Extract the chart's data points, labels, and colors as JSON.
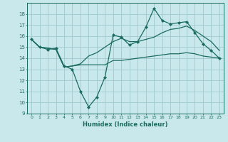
{
  "title": "",
  "xlabel": "Humidex (Indice chaleur)",
  "ylabel": "",
  "bg_color": "#c8e8ec",
  "line_color": "#1a6b5e",
  "grid_color": "#a0c8cc",
  "xlim": [
    -0.5,
    23.5
  ],
  "ylim": [
    9,
    19
  ],
  "yticks": [
    9,
    10,
    11,
    12,
    13,
    14,
    15,
    16,
    17,
    18
  ],
  "xticks": [
    0,
    1,
    2,
    3,
    4,
    5,
    6,
    7,
    8,
    9,
    10,
    11,
    12,
    13,
    14,
    15,
    16,
    17,
    18,
    19,
    20,
    21,
    22,
    23
  ],
  "line1_x": [
    0,
    1,
    2,
    3,
    4,
    5,
    6,
    7,
    8,
    9,
    10,
    11,
    12,
    13,
    14,
    15,
    16,
    17,
    18,
    19,
    20,
    21,
    22,
    23
  ],
  "line1_y": [
    15.7,
    15.0,
    14.8,
    14.9,
    13.3,
    13.0,
    11.0,
    9.6,
    10.5,
    12.3,
    16.1,
    15.9,
    15.2,
    15.5,
    16.8,
    18.5,
    17.4,
    17.1,
    17.2,
    17.3,
    16.3,
    15.3,
    14.7,
    14.0
  ],
  "line2_x": [
    0,
    1,
    2,
    3,
    4,
    5,
    6,
    7,
    8,
    9,
    10,
    11,
    12,
    13,
    14,
    15,
    16,
    17,
    18,
    19,
    20,
    21,
    22,
    23
  ],
  "line2_y": [
    15.7,
    15.0,
    14.9,
    14.8,
    13.2,
    13.3,
    13.4,
    13.4,
    13.4,
    13.4,
    13.8,
    13.8,
    13.9,
    14.0,
    14.1,
    14.2,
    14.3,
    14.4,
    14.4,
    14.5,
    14.4,
    14.2,
    14.1,
    14.0
  ],
  "line3_x": [
    0,
    1,
    2,
    3,
    4,
    5,
    6,
    7,
    8,
    9,
    10,
    11,
    12,
    13,
    14,
    15,
    16,
    17,
    18,
    19,
    20,
    21,
    22,
    23
  ],
  "line3_y": [
    15.7,
    15.0,
    14.9,
    14.8,
    13.2,
    13.3,
    13.5,
    14.2,
    14.5,
    15.0,
    15.5,
    15.8,
    15.5,
    15.5,
    15.7,
    15.9,
    16.3,
    16.6,
    16.7,
    16.9,
    16.5,
    16.0,
    15.5,
    14.7
  ]
}
